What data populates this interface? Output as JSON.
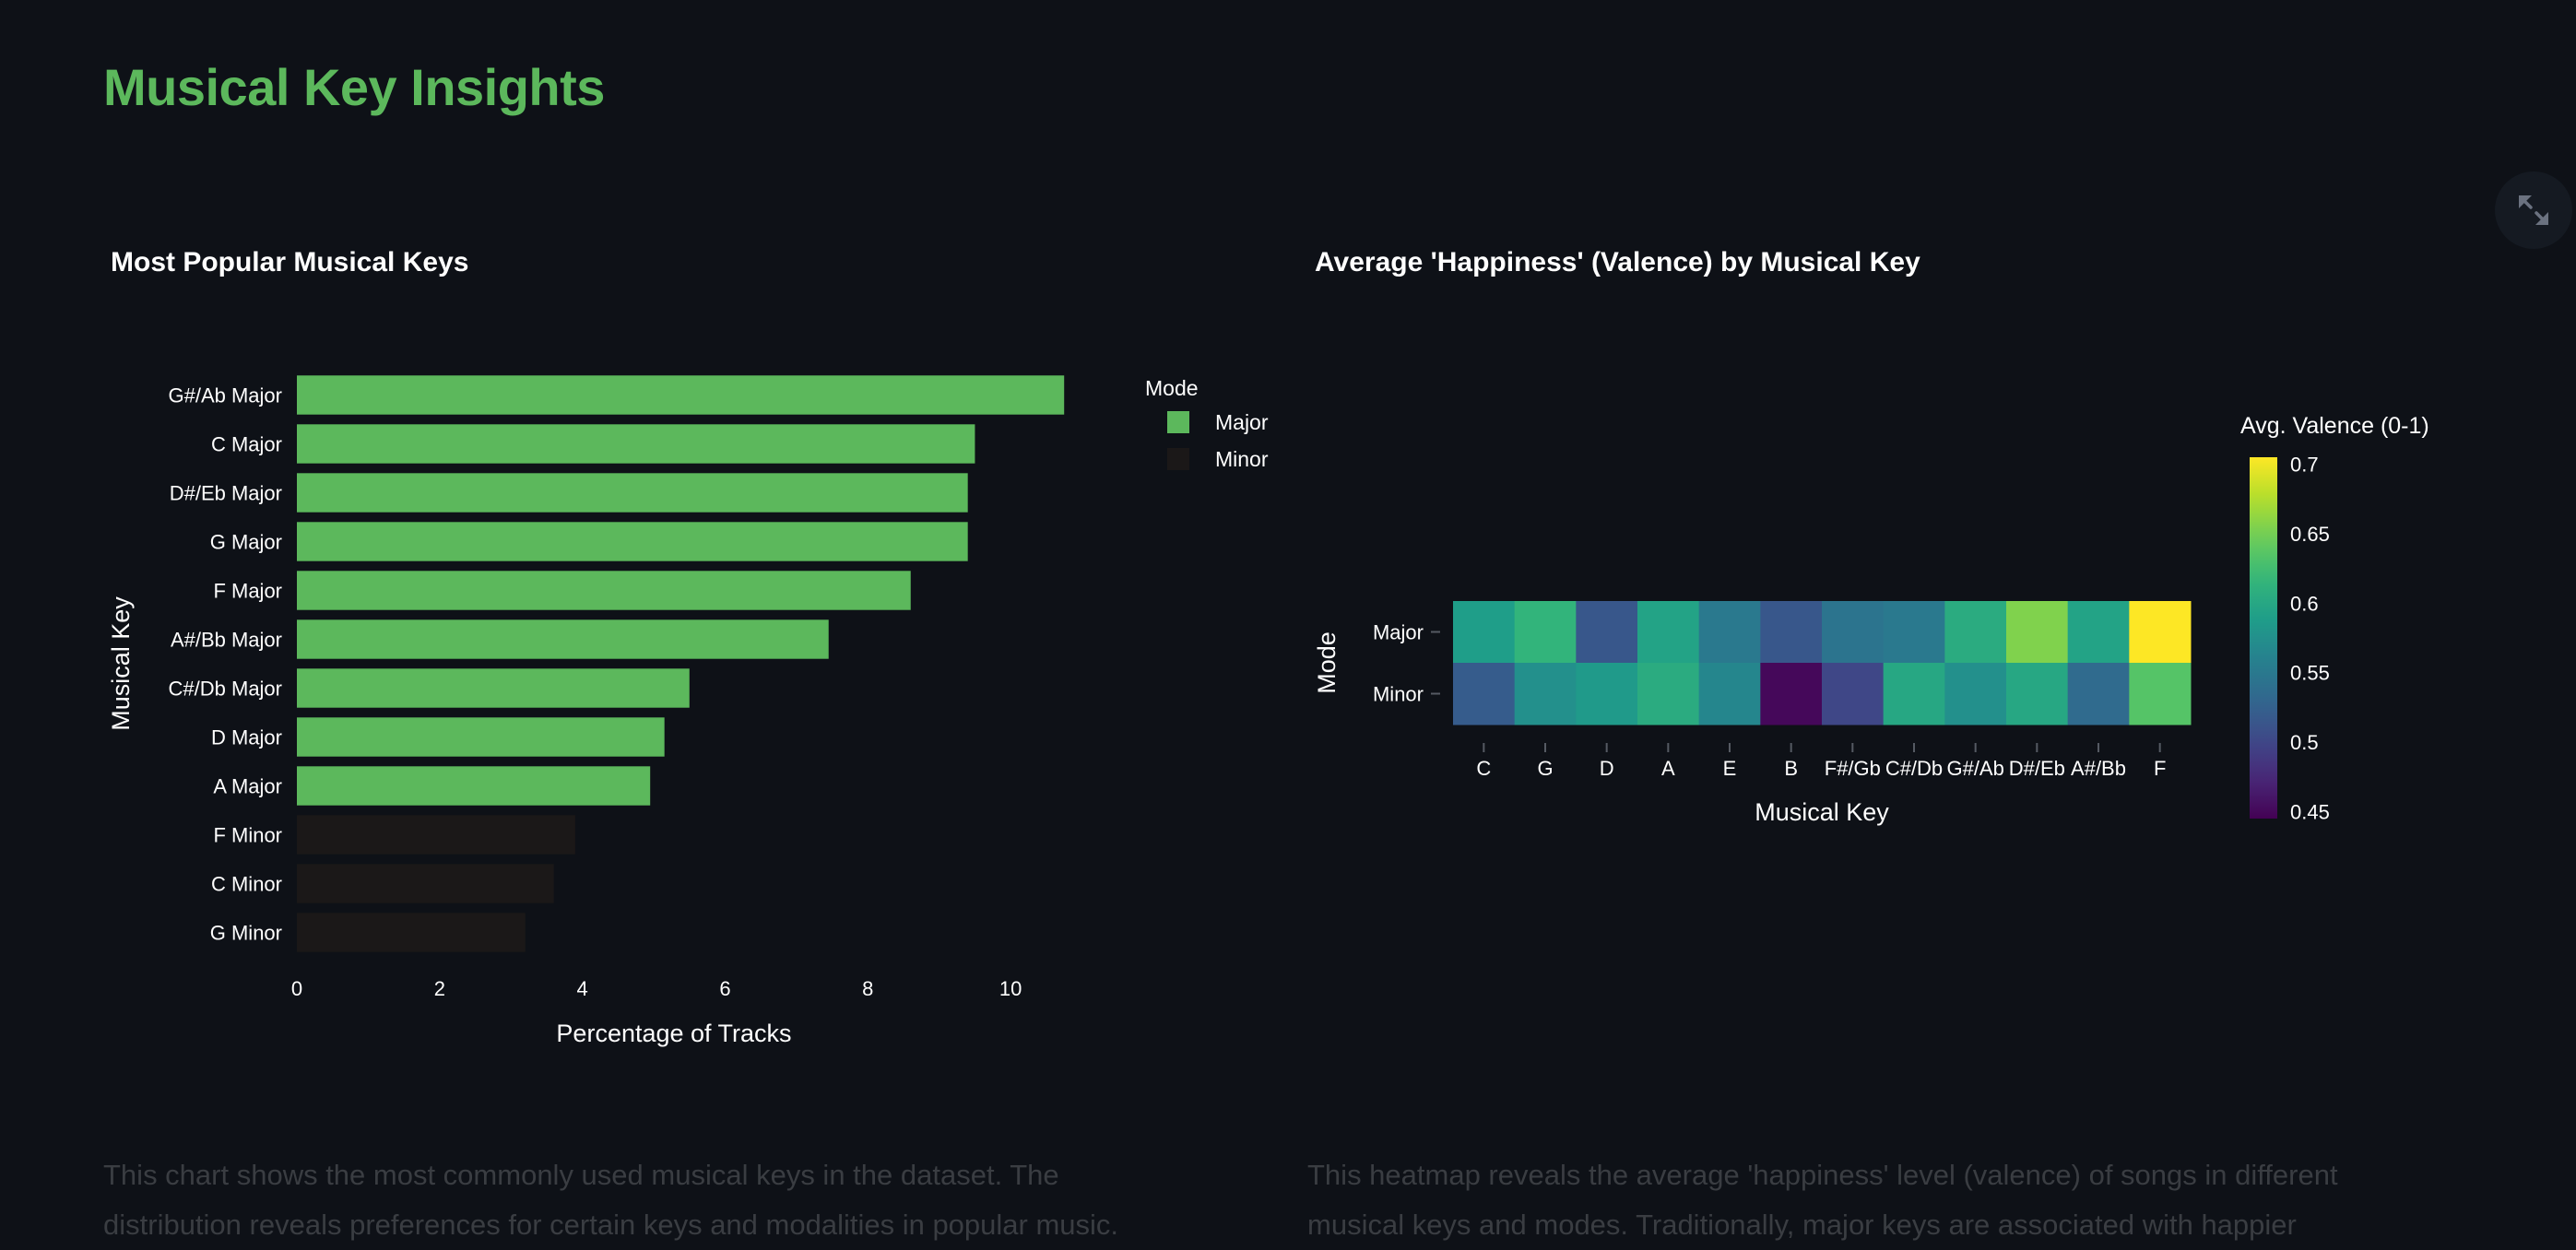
{
  "page": {
    "title": "Musical Key Insights",
    "fullscreen_icon": "expand-arrows-icon"
  },
  "colors": {
    "title": "#5cb85c",
    "major": "#5cb85c",
    "minor": "#1b1818",
    "background": "#0e1117"
  },
  "captions": {
    "bar": "This chart shows the most commonly used musical keys in the dataset. The distribution reveals preferences for certain keys and modalities in popular music.",
    "heatmap": "This heatmap reveals the average 'happiness' level (valence) of songs in different musical keys and modes. Traditionally, major keys are associated with happier"
  },
  "chart_data": [
    {
      "type": "bar",
      "orientation": "horizontal",
      "title": "Most Popular Musical Keys",
      "xlabel": "Percentage of Tracks",
      "ylabel": "Musical Key",
      "xlim": [
        0,
        11.6
      ],
      "xticks": [
        0,
        2,
        4,
        6,
        8,
        10
      ],
      "grid": false,
      "legend": {
        "title": "Mode",
        "position": "top-right",
        "entries": [
          "Major",
          "Minor"
        ]
      },
      "categories": [
        "G#/Ab Major",
        "C Major",
        "D#/Eb Major",
        "G Major",
        "F Major",
        "A#/Bb Major",
        "C#/Db Major",
        "D Major",
        "A Major",
        "F Minor",
        "C Minor",
        "G Minor"
      ],
      "values": [
        10.75,
        9.5,
        9.4,
        9.4,
        8.6,
        7.45,
        5.5,
        5.15,
        4.95,
        3.9,
        3.6,
        3.2
      ],
      "modes": [
        "Major",
        "Major",
        "Major",
        "Major",
        "Major",
        "Major",
        "Major",
        "Major",
        "Major",
        "Minor",
        "Minor",
        "Minor"
      ]
    },
    {
      "type": "heatmap",
      "title": "Average 'Happiness' (Valence) by Musical Key",
      "xlabel": "Musical Key",
      "ylabel": "Mode",
      "x": [
        "C",
        "G",
        "D",
        "A",
        "E",
        "B",
        "F#/Gb",
        "C#/Db",
        "G#/Ab",
        "D#/Eb",
        "A#/Bb",
        "F"
      ],
      "y": [
        "Major",
        "Minor"
      ],
      "z": [
        [
          0.59,
          0.615,
          0.515,
          0.595,
          0.55,
          0.515,
          0.545,
          0.55,
          0.605,
          0.655,
          0.595,
          0.705
        ],
        [
          0.52,
          0.575,
          0.585,
          0.605,
          0.565,
          0.45,
          0.5,
          0.6,
          0.575,
          0.6,
          0.535,
          0.635
        ]
      ],
      "colorbar": {
        "title": "Avg. Valence (0-1)",
        "range": [
          0.445,
          0.705
        ],
        "ticks": [
          0.45,
          0.5,
          0.55,
          0.6,
          0.65,
          0.7
        ],
        "tick_labels": [
          "0.45",
          "0.5",
          "0.55",
          "0.6",
          "0.65",
          "0.7"
        ],
        "colorscale": "viridis"
      }
    }
  ]
}
